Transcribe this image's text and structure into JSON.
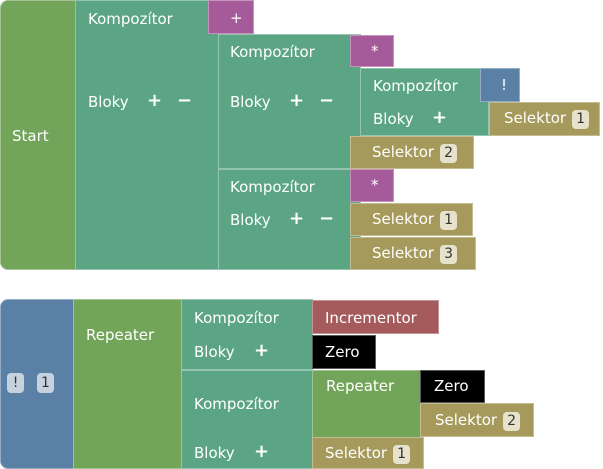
{
  "colors": {
    "start": "#72a45a",
    "composer": "#5ba585",
    "operator": "#a55b99",
    "selector": "#a59a5b",
    "blue": "#5b80a5",
    "incrementor": "#a55b5b",
    "zero": "#000000"
  },
  "labels": {
    "start": "Start",
    "composer": "Kompozítor",
    "blocks": "Bloky",
    "selector": "Selektor",
    "repeater": "Repeater",
    "incrementor": "Incrementor",
    "zero": "Zero",
    "add": "+",
    "remove": "−"
  },
  "tree1": {
    "op1": "+",
    "op2": "*",
    "op3": "!",
    "op4": "*",
    "sel_a": "1",
    "sel_b": "2",
    "sel_c": "1",
    "sel_d": "3"
  },
  "tree2": {
    "root_op": "!",
    "root_num": "1",
    "sel_e": "2",
    "sel_f": "1"
  }
}
